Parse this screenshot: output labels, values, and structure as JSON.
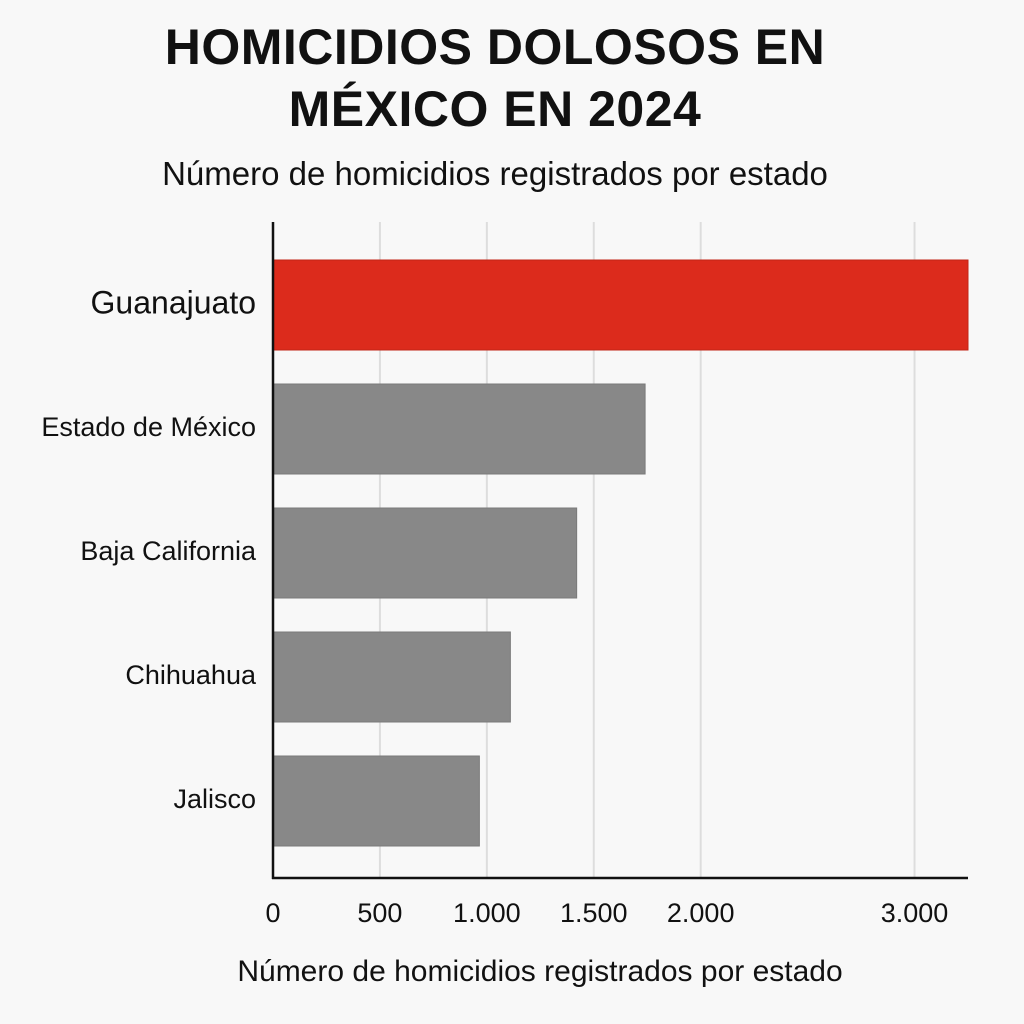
{
  "chart_data": {
    "type": "bar",
    "orientation": "horizontal",
    "title": "HOMICIDIOS DOLOSOS EN MÉXICO EN 2024",
    "subtitle": "Número de homicidios registrados por estado",
    "xlabel": "Número de homicidios registrados por estado",
    "ylabel": "",
    "categories": [
      "Guanajuato",
      "Estado de México",
      "Baja California",
      "Chihuahua",
      "Jalisco"
    ],
    "values": [
      3250,
      1740,
      1420,
      1110,
      965
    ],
    "xlim": [
      0,
      3250
    ],
    "xticks": [
      0,
      500,
      1000,
      1500,
      2000,
      3000
    ],
    "xtick_labels": [
      "0",
      "500",
      "1.000",
      "1.500",
      "2.000",
      "3.000"
    ],
    "grid": true,
    "legend": "none",
    "colors": {
      "highlight": "#dc2b1c",
      "default": "#888888",
      "grid": "#dddddd",
      "axis": "#111111"
    },
    "highlight_category": "Guanajuato"
  }
}
